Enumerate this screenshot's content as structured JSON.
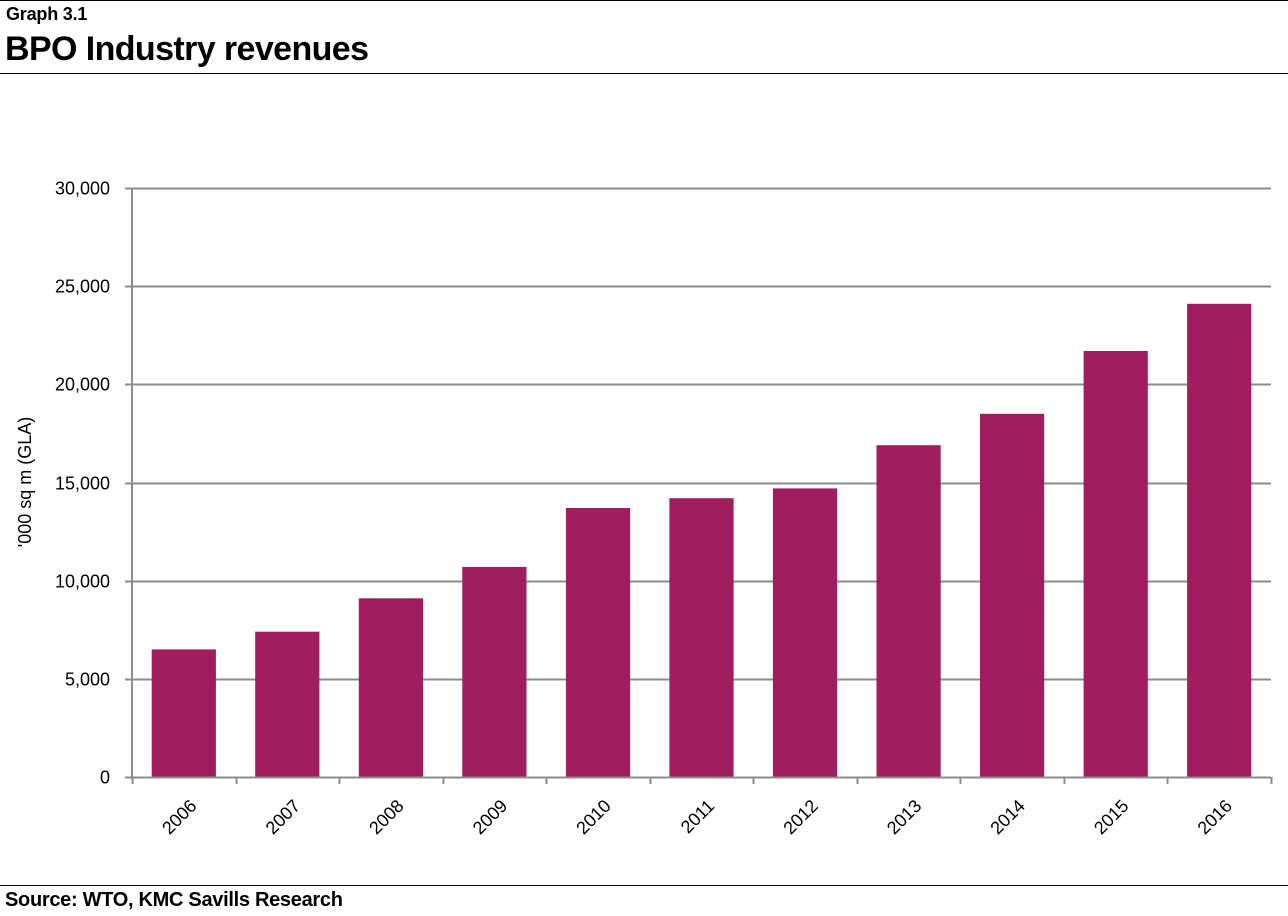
{
  "header": {
    "graph_label": "Graph 3.1",
    "title": "BPO Industry revenues"
  },
  "footer": {
    "source": "Source: WTO, KMC Savills Research"
  },
  "chart_data": {
    "type": "bar",
    "title": "BPO Industry revenues",
    "xlabel": "",
    "ylabel": "'000 sq m (GLA)",
    "categories": [
      "2006",
      "2007",
      "2008",
      "2009",
      "2010",
      "2011",
      "2012",
      "2013",
      "2014",
      "2015",
      "2016"
    ],
    "values": [
      6500,
      7400,
      9100,
      10700,
      13700,
      14200,
      14700,
      16900,
      18500,
      21700,
      24100
    ],
    "ylim": [
      0,
      30000
    ],
    "yticks": [
      0,
      5000,
      10000,
      15000,
      20000,
      25000,
      30000
    ],
    "ytick_labels": [
      "0",
      "5,000",
      "10,000",
      "15,000",
      "20,000",
      "25,000",
      "30,000"
    ],
    "grid": true,
    "legend": "none",
    "bar_color": "#a01e5e",
    "grid_color": "#8c8c8c",
    "axis_color": "#8c8c8c"
  }
}
